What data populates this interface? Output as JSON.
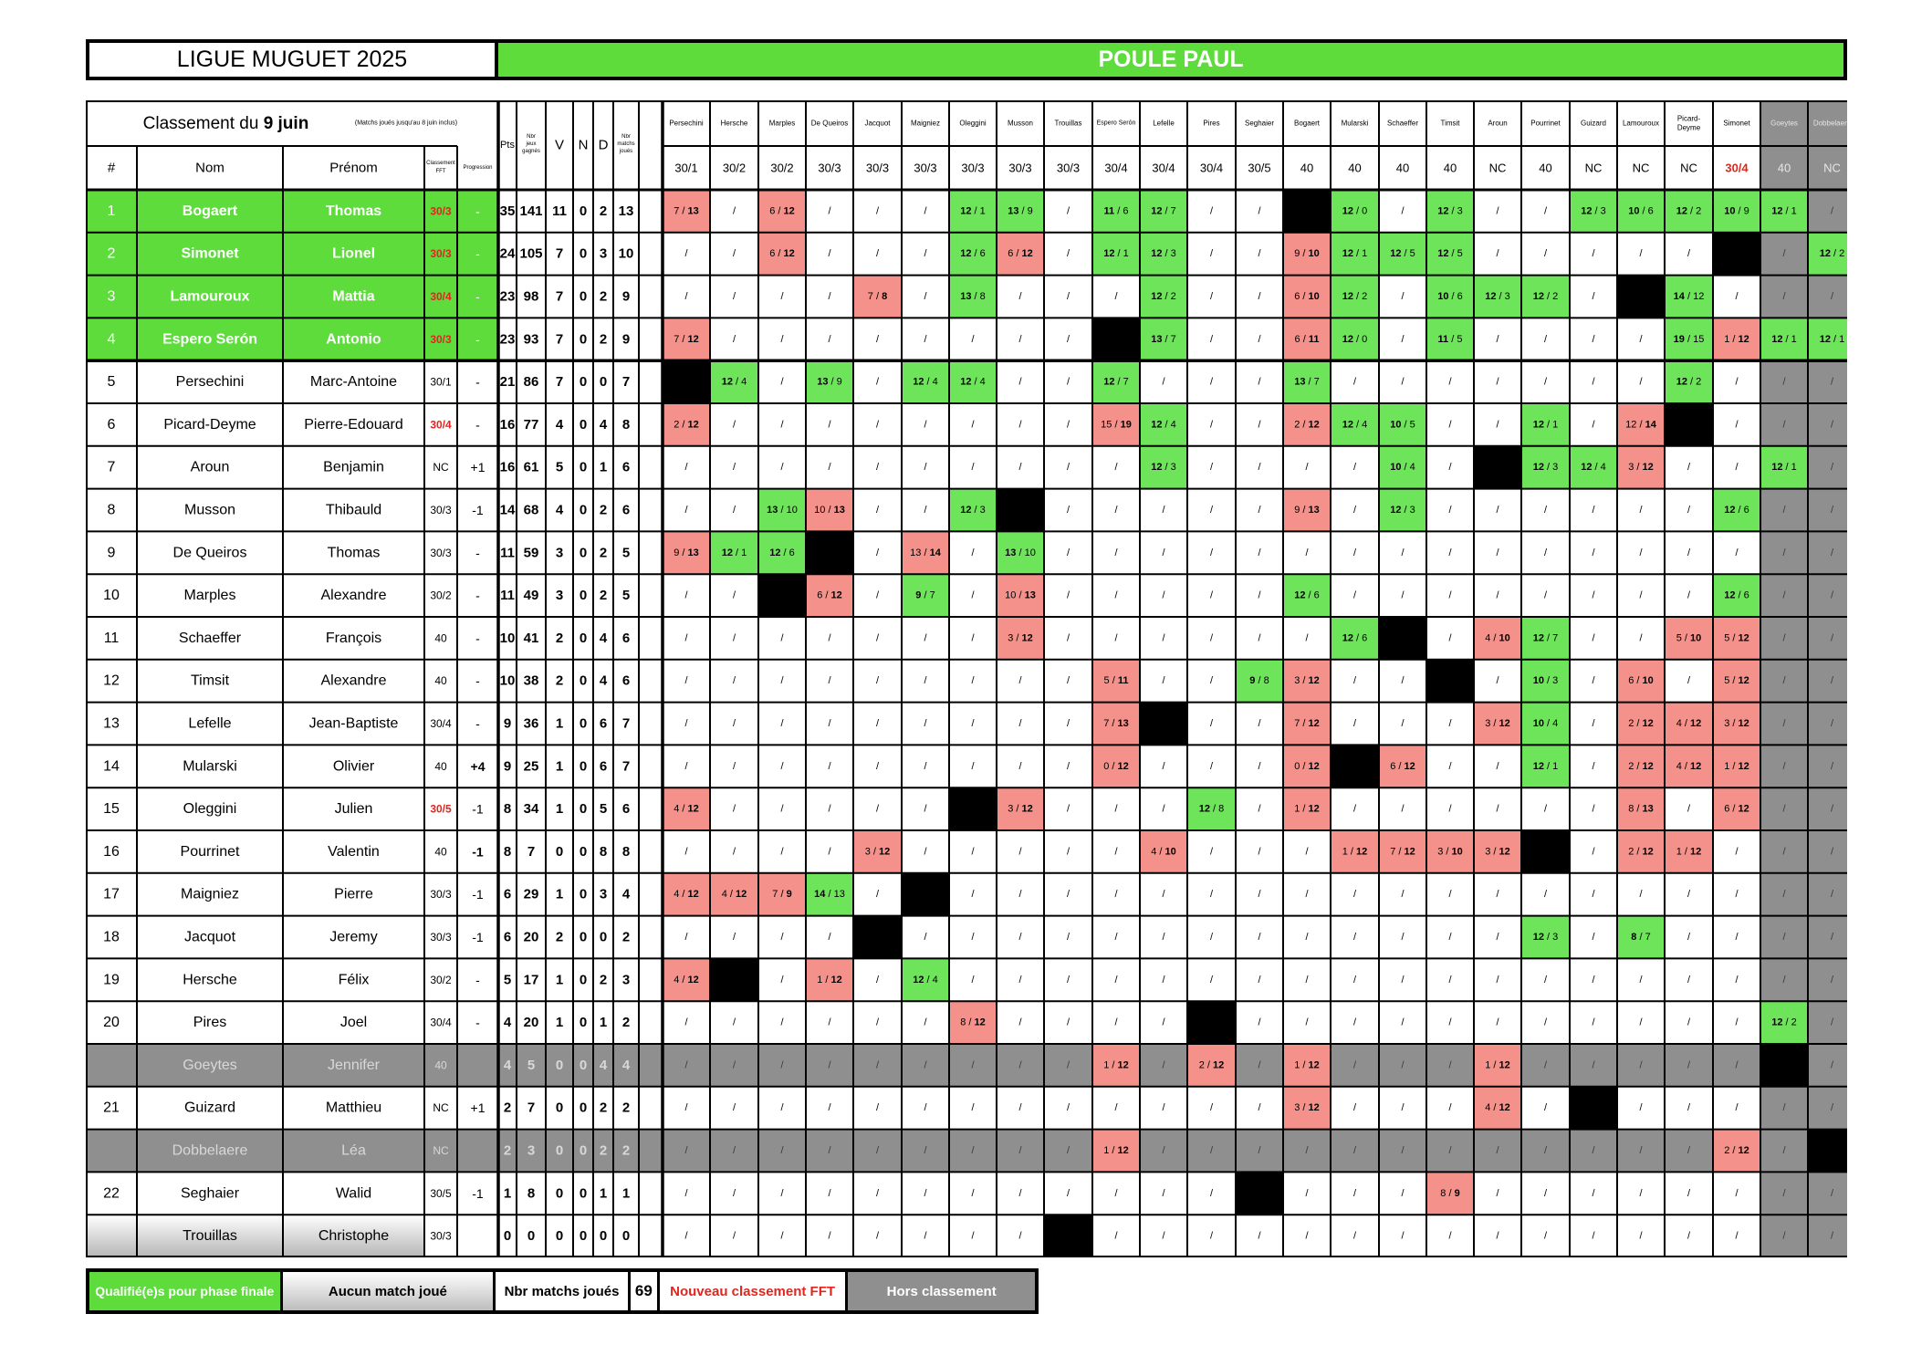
{
  "header": {
    "title": "LIGUE MUGUET 2025",
    "poule": "POULE PAUL"
  },
  "table_header": {
    "classement_prefix": "Classement du",
    "classement_date": "9 juin",
    "classement_note": "(Matchs joués jusqu'au 8 juin inclus)",
    "columns": {
      "rank": "#",
      "nom": "Nom",
      "prenom": "Prénom",
      "classement_fft": "Classement FFT",
      "progression": "Progression",
      "pts": "Pts",
      "nbr_jeux": "Nbr jeux gagnés",
      "v": "V",
      "n": "N",
      "d": "D",
      "nbr_matchs": "Nbr matchs joués"
    }
  },
  "opponents": [
    {
      "name": "Persechini",
      "classement": "30/1"
    },
    {
      "name": "Hersche",
      "classement": "30/2"
    },
    {
      "name": "Marples",
      "classement": "30/2"
    },
    {
      "name": "De Queiros",
      "classement": "30/3"
    },
    {
      "name": "Jacquot",
      "classement": "30/3"
    },
    {
      "name": "Maigniez",
      "classement": "30/3"
    },
    {
      "name": "Oleggini",
      "classement": "30/3"
    },
    {
      "name": "Musson",
      "classement": "30/3"
    },
    {
      "name": "Trouillas",
      "classement": "30/3"
    },
    {
      "name": "Espero Serón",
      "classement": "30/4"
    },
    {
      "name": "Lefelle",
      "classement": "30/4"
    },
    {
      "name": "Pires",
      "classement": "30/4"
    },
    {
      "name": "Seghaier",
      "classement": "30/5"
    },
    {
      "name": "Bogaert",
      "classement": "40"
    },
    {
      "name": "Mularski",
      "classement": "40"
    },
    {
      "name": "Schaeffer",
      "classement": "40"
    },
    {
      "name": "Timsit",
      "classement": "40"
    },
    {
      "name": "Aroun",
      "classement": "NC"
    },
    {
      "name": "Pourrinet",
      "classement": "40"
    },
    {
      "name": "Guizard",
      "classement": "NC"
    },
    {
      "name": "Lamouroux",
      "classement": "NC"
    },
    {
      "name": "Picard-Deyme",
      "classement": "NC"
    },
    {
      "name": "Simonet",
      "classement": "30/4",
      "classement_new": true
    },
    {
      "name": "Goeytes",
      "classement": "40",
      "hors": true
    },
    {
      "name": "Dobbelaere",
      "classement": "NC",
      "hors": true
    }
  ],
  "players": [
    {
      "rank": "1",
      "nom": "Bogaert",
      "prenom": "Thomas",
      "classement": "30/3",
      "classement_new": true,
      "progression": "-",
      "pts": "35",
      "jeux": "141",
      "v": "11",
      "n": "0",
      "d": "2",
      "matchs": "13",
      "status": "qualified",
      "results": [
        "7/13",
        "/",
        "6/12",
        "/",
        "/",
        "/",
        "12/1",
        "13/9",
        "/",
        "11/6",
        "12/7",
        "/",
        "/",
        "X",
        "12/0",
        "/",
        "12/3",
        "/",
        "/",
        "12/3",
        "10/6",
        "12/2",
        "10/9",
        "12/1",
        "/"
      ]
    },
    {
      "rank": "2",
      "nom": "Simonet",
      "prenom": "Lionel",
      "classement": "30/3",
      "classement_new": true,
      "progression": "-",
      "pts": "24",
      "jeux": "105",
      "v": "7",
      "n": "0",
      "d": "3",
      "matchs": "10",
      "status": "qualified",
      "results": [
        "/",
        "/",
        "6/12",
        "/",
        "/",
        "/",
        "12/6",
        "6/12",
        "/",
        "12/1",
        "12/3",
        "/",
        "/",
        "9/10",
        "12/1",
        "12/5",
        "12/5",
        "/",
        "/",
        "/",
        "/",
        "/",
        "X",
        "/",
        "12/2"
      ]
    },
    {
      "rank": "3",
      "nom": "Lamouroux",
      "prenom": "Mattia",
      "classement": "30/4",
      "classement_new": true,
      "progression": "-",
      "pts": "23",
      "jeux": "98",
      "v": "7",
      "n": "0",
      "d": "2",
      "matchs": "9",
      "status": "qualified",
      "results": [
        "/",
        "/",
        "/",
        "/",
        "7/8",
        "/",
        "13/8",
        "/",
        "/",
        "/",
        "12/2",
        "/",
        "/",
        "6/10",
        "12/2",
        "/",
        "10/6",
        "12/3",
        "12/2",
        "/",
        "X",
        "14/12",
        "/",
        "/",
        "/"
      ]
    },
    {
      "rank": "4",
      "nom": "Espero Serón",
      "prenom": "Antonio",
      "classement": "30/3",
      "classement_new": true,
      "progression": "-",
      "pts": "23",
      "jeux": "93",
      "v": "7",
      "n": "0",
      "d": "2",
      "matchs": "9",
      "status": "qualified",
      "results": [
        "7/12",
        "/",
        "/",
        "/",
        "/",
        "/",
        "/",
        "/",
        "/",
        "X",
        "13/7",
        "/",
        "/",
        "6/11",
        "12/0",
        "/",
        "11/5",
        "/",
        "/",
        "/",
        "/",
        "19/15",
        "1/12",
        "12/1",
        "12/1"
      ]
    },
    {
      "rank": "5",
      "nom": "Persechini",
      "prenom": "Marc-Antoine",
      "classement": "30/1",
      "progression": "-",
      "pts": "21",
      "jeux": "86",
      "v": "7",
      "n": "0",
      "d": "0",
      "matchs": "7",
      "status": "normal",
      "results": [
        "X",
        "12/4",
        "/",
        "13/9",
        "/",
        "12/4",
        "12/4",
        "/",
        "/",
        "12/7",
        "/",
        "/",
        "/",
        "13/7",
        "/",
        "/",
        "/",
        "/",
        "/",
        "/",
        "/",
        "12/2",
        "/",
        "/",
        "/"
      ]
    },
    {
      "rank": "6",
      "nom": "Picard-Deyme",
      "prenom": "Pierre-Edouard",
      "classement": "30/4",
      "classement_new": true,
      "progression": "-",
      "pts": "16",
      "jeux": "77",
      "v": "4",
      "n": "0",
      "d": "4",
      "matchs": "8",
      "status": "normal",
      "results": [
        "2/12",
        "/",
        "/",
        "/",
        "/",
        "/",
        "/",
        "/",
        "/",
        "15/19",
        "12/4",
        "/",
        "/",
        "2/12",
        "12/4",
        "10/5",
        "/",
        "/",
        "12/1",
        "/",
        "12/14",
        "X",
        "/",
        "/",
        "/"
      ]
    },
    {
      "rank": "7",
      "nom": "Aroun",
      "prenom": "Benjamin",
      "classement": "NC",
      "progression": "+1",
      "pts": "16",
      "jeux": "61",
      "v": "5",
      "n": "0",
      "d": "1",
      "matchs": "6",
      "status": "normal",
      "results": [
        "/",
        "/",
        "/",
        "/",
        "/",
        "/",
        "/",
        "/",
        "/",
        "/",
        "12/3",
        "/",
        "/",
        "/",
        "/",
        "10/4",
        "/",
        "X",
        "12/3",
        "12/4",
        "3/12",
        "/",
        "/",
        "12/1",
        "/"
      ]
    },
    {
      "rank": "8",
      "nom": "Musson",
      "prenom": "Thibauld",
      "classement": "30/3",
      "progression": "-1",
      "pts": "14",
      "jeux": "68",
      "v": "4",
      "n": "0",
      "d": "2",
      "matchs": "6",
      "status": "normal",
      "results": [
        "/",
        "/",
        "13/10",
        "10/13",
        "/",
        "/",
        "12/3",
        "X",
        "/",
        "/",
        "/",
        "/",
        "/",
        "9/13",
        "/",
        "12/3",
        "/",
        "/",
        "/",
        "/",
        "/",
        "/",
        "12/6",
        "/",
        "/"
      ]
    },
    {
      "rank": "9",
      "nom": "De Queiros",
      "prenom": "Thomas",
      "classement": "30/3",
      "progression": "-",
      "pts": "11",
      "jeux": "59",
      "v": "3",
      "n": "0",
      "d": "2",
      "matchs": "5",
      "status": "normal",
      "results": [
        "9/13",
        "12/1",
        "12/6",
        "X",
        "/",
        "13/14",
        "/",
        "13/10",
        "/",
        "/",
        "/",
        "/",
        "/",
        "/",
        "/",
        "/",
        "/",
        "/",
        "/",
        "/",
        "/",
        "/",
        "/",
        "/",
        "/"
      ]
    },
    {
      "rank": "10",
      "nom": "Marples",
      "prenom": "Alexandre",
      "classement": "30/2",
      "progression": "-",
      "pts": "11",
      "jeux": "49",
      "v": "3",
      "n": "0",
      "d": "2",
      "matchs": "5",
      "status": "normal",
      "results": [
        "/",
        "/",
        "X",
        "6/12",
        "/",
        "9/7",
        "/",
        "10/13",
        "/",
        "/",
        "/",
        "/",
        "/",
        "12/6",
        "/",
        "/",
        "/",
        "/",
        "/",
        "/",
        "/",
        "/",
        "12/6",
        "/",
        "/"
      ]
    },
    {
      "rank": "11",
      "nom": "Schaeffer",
      "prenom": "François",
      "classement": "40",
      "progression": "-",
      "pts": "10",
      "jeux": "41",
      "v": "2",
      "n": "0",
      "d": "4",
      "matchs": "6",
      "status": "normal",
      "results": [
        "/",
        "/",
        "/",
        "/",
        "/",
        "/",
        "/",
        "3/12",
        "/",
        "/",
        "/",
        "/",
        "/",
        "/",
        "12/6",
        "X",
        "/",
        "4/10",
        "12/7",
        "/",
        "/",
        "5/10",
        "5/12",
        "/",
        "/"
      ]
    },
    {
      "rank": "12",
      "nom": "Timsit",
      "prenom": "Alexandre",
      "classement": "40",
      "progression": "-",
      "pts": "10",
      "jeux": "38",
      "v": "2",
      "n": "0",
      "d": "4",
      "matchs": "6",
      "status": "normal",
      "results": [
        "/",
        "/",
        "/",
        "/",
        "/",
        "/",
        "/",
        "/",
        "/",
        "5/11",
        "/",
        "/",
        "9/8",
        "3/12",
        "/",
        "/",
        "X",
        "/",
        "10/3",
        "/",
        "6/10",
        "/",
        "5/12",
        "/",
        "/"
      ]
    },
    {
      "rank": "13",
      "nom": "Lefelle",
      "prenom": "Jean-Baptiste",
      "classement": "30/4",
      "progression": "-",
      "pts": "9",
      "jeux": "36",
      "v": "1",
      "n": "0",
      "d": "6",
      "matchs": "7",
      "status": "normal",
      "results": [
        "/",
        "/",
        "/",
        "/",
        "/",
        "/",
        "/",
        "/",
        "/",
        "7/13",
        "X",
        "/",
        "/",
        "7/12",
        "/",
        "/",
        "/",
        "3/12",
        "10/4",
        "/",
        "2/12",
        "4/12",
        "3/12",
        "/",
        "/"
      ]
    },
    {
      "rank": "14",
      "nom": "Mularski",
      "prenom": "Olivier",
      "classement": "40",
      "progression": "+4",
      "pts": "9",
      "jeux": "25",
      "v": "1",
      "n": "0",
      "d": "6",
      "matchs": "7",
      "status": "normal",
      "results": [
        "/",
        "/",
        "/",
        "/",
        "/",
        "/",
        "/",
        "/",
        "/",
        "0/12",
        "/",
        "/",
        "/",
        "0/12",
        "X",
        "6/12",
        "/",
        "/",
        "12/1",
        "/",
        "2/12",
        "4/12",
        "1/12",
        "/",
        "/"
      ]
    },
    {
      "rank": "15",
      "nom": "Oleggini",
      "prenom": "Julien",
      "classement": "30/5",
      "classement_new": true,
      "progression": "-1",
      "pts": "8",
      "jeux": "34",
      "v": "1",
      "n": "0",
      "d": "5",
      "matchs": "6",
      "status": "normal",
      "results": [
        "4/12",
        "/",
        "/",
        "/",
        "/",
        "/",
        "X",
        "3/12",
        "/",
        "/",
        "/",
        "12/8",
        "/",
        "1/12",
        "/",
        "/",
        "/",
        "/",
        "/",
        "/",
        "8/13",
        "/",
        "6/12",
        "/",
        "/"
      ]
    },
    {
      "rank": "16",
      "nom": "Pourrinet",
      "prenom": "Valentin",
      "classement": "40",
      "progression": "-1",
      "pts": "8",
      "jeux": "7",
      "v": "0",
      "n": "0",
      "d": "8",
      "matchs": "8",
      "status": "normal",
      "results": [
        "/",
        "/",
        "/",
        "/",
        "3/12",
        "/",
        "/",
        "/",
        "/",
        "/",
        "4/10",
        "/",
        "/",
        "/",
        "1/12",
        "7/12",
        "3/10",
        "3/12",
        "X",
        "/",
        "2/12",
        "1/12",
        "/",
        "/",
        "/"
      ]
    },
    {
      "rank": "17",
      "nom": "Maigniez",
      "prenom": "Pierre",
      "classement": "30/3",
      "progression": "-1",
      "pts": "6",
      "jeux": "29",
      "v": "1",
      "n": "0",
      "d": "3",
      "matchs": "4",
      "status": "normal",
      "results": [
        "4/12",
        "4/12",
        "7/9",
        "14/13",
        "/",
        "X",
        "/",
        "/",
        "/",
        "/",
        "/",
        "/",
        "/",
        "/",
        "/",
        "/",
        "/",
        "/",
        "/",
        "/",
        "/",
        "/",
        "/",
        "/",
        "/"
      ]
    },
    {
      "rank": "18",
      "nom": "Jacquot",
      "prenom": "Jeremy",
      "classement": "30/3",
      "progression": "-1",
      "pts": "6",
      "jeux": "20",
      "v": "2",
      "n": "0",
      "d": "0",
      "matchs": "2",
      "status": "normal",
      "results": [
        "/",
        "/",
        "/",
        "/",
        "X",
        "/",
        "/",
        "/",
        "/",
        "/",
        "/",
        "/",
        "/",
        "/",
        "/",
        "/",
        "/",
        "/",
        "12/3",
        "/",
        "8/7",
        "/",
        "/",
        "/",
        "/"
      ]
    },
    {
      "rank": "19",
      "nom": "Hersche",
      "prenom": "Félix",
      "classement": "30/2",
      "progression": "-",
      "pts": "5",
      "jeux": "17",
      "v": "1",
      "n": "0",
      "d": "2",
      "matchs": "3",
      "status": "normal",
      "results": [
        "4/12",
        "X",
        "/",
        "1/12",
        "/",
        "12/4",
        "/",
        "/",
        "/",
        "/",
        "/",
        "/",
        "/",
        "/",
        "/",
        "/",
        "/",
        "/",
        "/",
        "/",
        "/",
        "/",
        "/",
        "/",
        "/"
      ]
    },
    {
      "rank": "20",
      "nom": "Pires",
      "prenom": "Joel",
      "classement": "30/4",
      "progression": "-",
      "pts": "4",
      "jeux": "20",
      "v": "1",
      "n": "0",
      "d": "1",
      "matchs": "2",
      "status": "normal",
      "results": [
        "/",
        "/",
        "/",
        "/",
        "/",
        "/",
        "8/12",
        "/",
        "/",
        "/",
        "/",
        "X",
        "/",
        "/",
        "/",
        "/",
        "/",
        "/",
        "/",
        "/",
        "/",
        "/",
        "/",
        "12/2",
        "/"
      ]
    },
    {
      "rank": "",
      "nom": "Goeytes",
      "prenom": "Jennifer",
      "classement": "40",
      "progression": "",
      "pts": "4",
      "jeux": "5",
      "v": "0",
      "n": "0",
      "d": "4",
      "matchs": "4",
      "status": "hors",
      "results": [
        "/",
        "/",
        "/",
        "/",
        "/",
        "/",
        "/",
        "/",
        "/",
        "1/12",
        "/",
        "2/12",
        "/",
        "1/12",
        "/",
        "/",
        "/",
        "1/12",
        "/",
        "/",
        "/",
        "/",
        "/",
        "X",
        "/"
      ]
    },
    {
      "rank": "21",
      "nom": "Guizard",
      "prenom": "Matthieu",
      "classement": "NC",
      "progression": "+1",
      "pts": "2",
      "jeux": "7",
      "v": "0",
      "n": "0",
      "d": "2",
      "matchs": "2",
      "status": "normal",
      "results": [
        "/",
        "/",
        "/",
        "/",
        "/",
        "/",
        "/",
        "/",
        "/",
        "/",
        "/",
        "/",
        "/",
        "3/12",
        "/",
        "/",
        "/",
        "4/12",
        "/",
        "X",
        "/",
        "/",
        "/",
        "/",
        "/"
      ]
    },
    {
      "rank": "",
      "nom": "Dobbelaere",
      "prenom": "Léa",
      "classement": "NC",
      "progression": "",
      "pts": "2",
      "jeux": "3",
      "v": "0",
      "n": "0",
      "d": "2",
      "matchs": "2",
      "status": "hors",
      "results": [
        "/",
        "/",
        "/",
        "/",
        "/",
        "/",
        "/",
        "/",
        "/",
        "1/12",
        "/",
        "/",
        "/",
        "/",
        "/",
        "/",
        "/",
        "/",
        "/",
        "/",
        "/",
        "/",
        "2/12",
        "/",
        "X"
      ]
    },
    {
      "rank": "22",
      "nom": "Seghaier",
      "prenom": "Walid",
      "classement": "30/5",
      "progression": "-1",
      "pts": "1",
      "jeux": "8",
      "v": "0",
      "n": "0",
      "d": "1",
      "matchs": "1",
      "status": "normal",
      "results": [
        "/",
        "/",
        "/",
        "/",
        "/",
        "/",
        "/",
        "/",
        "/",
        "/",
        "/",
        "/",
        "X",
        "/",
        "/",
        "/",
        "8/9",
        "/",
        "/",
        "/",
        "/",
        "/",
        "/",
        "/",
        "/"
      ]
    },
    {
      "rank": "",
      "nom": "Trouillas",
      "prenom": "Christophe",
      "classement": "30/3",
      "progression": "",
      "pts": "0",
      "jeux": "0",
      "v": "0",
      "n": "0",
      "d": "0",
      "matchs": "0",
      "status": "nomatch",
      "results": [
        "/",
        "/",
        "/",
        "/",
        "/",
        "/",
        "/",
        "/",
        "X",
        "/",
        "/",
        "/",
        "/",
        "/",
        "/",
        "/",
        "/",
        "/",
        "/",
        "/",
        "/",
        "/",
        "/",
        "/",
        "/"
      ]
    }
  ],
  "legend": {
    "qualified": "Qualifié(e)s pour phase finale",
    "no_match": "Aucun match joué",
    "matchs_label": "Nbr matchs joués",
    "matchs_value": "69",
    "new_classement": "Nouveau classement FFT",
    "hors": "Hors classement"
  },
  "colors": {
    "green": "#5ddc3c",
    "win": "#6ee45a",
    "loss": "#f3918a",
    "grey": "#8f8f8f",
    "red_text": "#e0261f",
    "black": "#000000"
  }
}
